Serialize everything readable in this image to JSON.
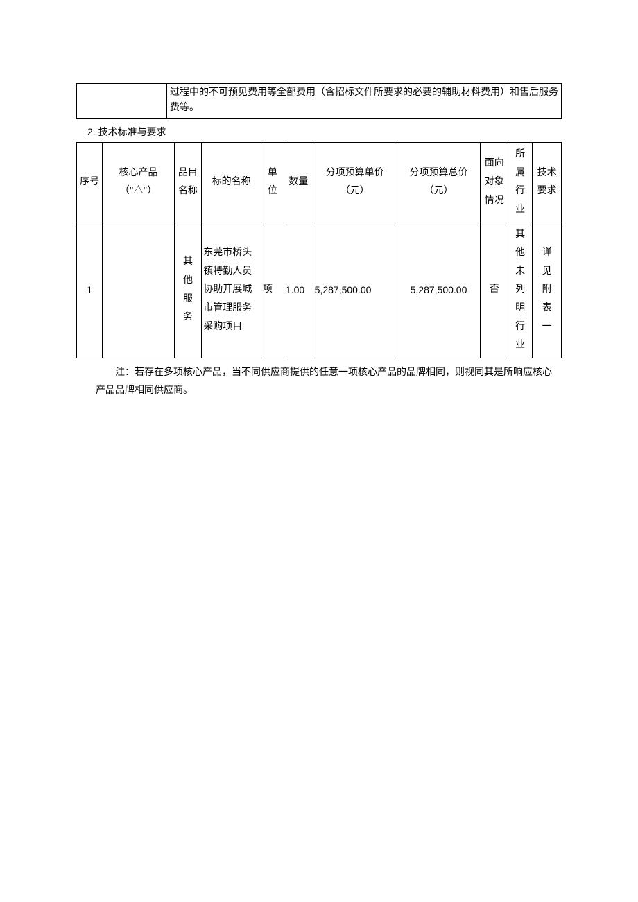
{
  "topTable": {
    "col2": "过程中的不可预见费用等全部费用（含招标文件所要求的必要的辅助材料费用）和售后服务费等。"
  },
  "heading": {
    "num": "2.",
    "text": "技术标准与要求"
  },
  "table2": {
    "headers": {
      "seq": "序号",
      "core": "核心产品（\"△\"）",
      "cat": "品目名称",
      "name": "标的名称",
      "unit": "单位",
      "qty": "数量",
      "unitprice": "分项预算单价（元）",
      "totalprice": "分项预算总价（元）",
      "target": "面向对象情况",
      "industry": "所属行业",
      "tech": "技术要求"
    },
    "row1": {
      "seq": "1",
      "core": "",
      "cat": "其他服务",
      "name": "东莞市桥头镇特勤人员协助开展城市管理服务采购项目",
      "unit": "项",
      "qty": "1.00",
      "unitprice": "5,287,500.00",
      "totalprice": "5,287,500.00",
      "target": "否",
      "industry": "其他未列明行业",
      "tech": "详见附表一"
    }
  },
  "footnote": "注：若存在多项核心产品，当不同供应商提供的任意一项核心产品的品牌相同，则视同其是所响应核心产品品牌相同供应商。",
  "colors": {
    "border": "#000000",
    "background": "#ffffff",
    "text": "#000000"
  }
}
